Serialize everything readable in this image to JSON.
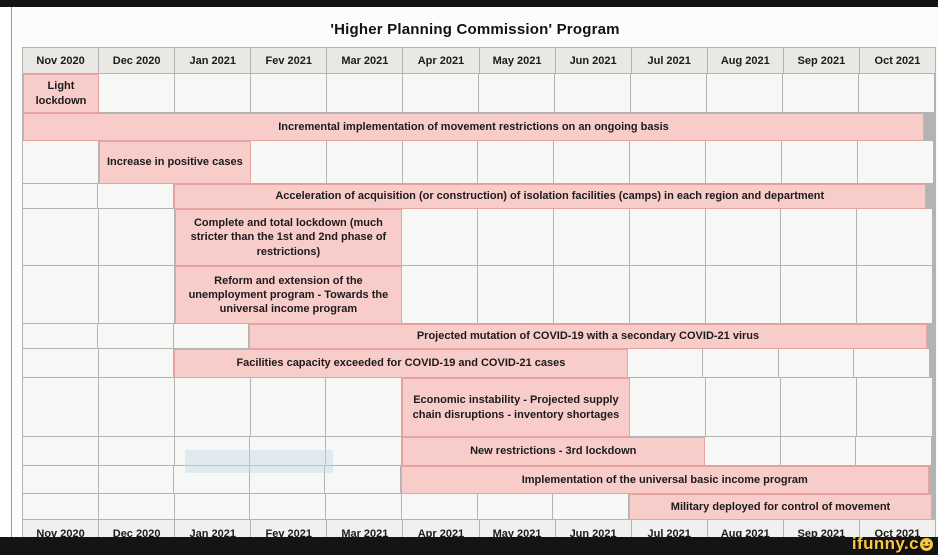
{
  "page": {
    "title": "'Higher Planning Commission' Program"
  },
  "watermark": {
    "label": "ifunny.c",
    "full": "ifunny.co"
  },
  "chart_data": {
    "type": "bar",
    "subtype": "gantt-timeline-table",
    "title": "'Higher Planning Commission' Program",
    "grid": true,
    "months": [
      "Nov 2020",
      "Dec 2020",
      "Jan 2021",
      "Fev 2021",
      "Mar 2021",
      "Apr 2021",
      "May 2021",
      "Jun 2021",
      "Jul 2021",
      "Aug 2021",
      "Sep 2021",
      "Oct 2021"
    ],
    "months_repeated_at_bottom": true,
    "colors": {
      "bar_fill": "#f8ccc9",
      "bar_border": "#e6a3a0",
      "header_bg": "#e9e8e5",
      "grid_line": "#b3b3b3",
      "watermark_yellow": "#f9c73b"
    },
    "rows": [
      {
        "label": "Light lockdown",
        "start": 1,
        "end": 1,
        "start_month": "Nov 2020",
        "end_month": "Nov 2020"
      },
      {
        "label": "Incremental implementation of movement restrictions on an ongoing basis",
        "start": 1,
        "end": 12,
        "start_month": "Nov 2020",
        "end_month": "Oct 2021"
      },
      {
        "label": "Increase in positive cases",
        "start": 2,
        "end": 3,
        "start_month": "Dec 2020",
        "end_month": "Jan 2021"
      },
      {
        "label": "Acceleration of acquisition (or construction) of isolation facilities (camps) in each region and department",
        "start": 3,
        "end": 12,
        "start_month": "Jan 2021",
        "end_month": "Oct 2021"
      },
      {
        "label": "Complete and total lockdown (much stricter than the 1st and 2nd phase of restrictions)",
        "start": 3,
        "end": 5,
        "start_month": "Jan 2021",
        "end_month": "Mar 2021"
      },
      {
        "label": "Reform and extension of the unemployment program - Towards the universal income program",
        "start": 3,
        "end": 5,
        "start_month": "Jan 2021",
        "end_month": "Mar 2021"
      },
      {
        "label": "Projected mutation of COVID-19 with a secondary COVID-21 virus",
        "start": 4,
        "end": 12,
        "start_month": "Fev 2021",
        "end_month": "Oct 2021"
      },
      {
        "label": "Facilities capacity exceeded for COVID-19 and COVID-21 cases",
        "start": 3,
        "end": 8,
        "start_month": "Jan 2021",
        "end_month": "Jun 2021"
      },
      {
        "label": "Economic instability - Projected supply chain disruptions - inventory shortages",
        "start": 6,
        "end": 8,
        "start_month": "Apr 2021",
        "end_month": "Jun 2021"
      },
      {
        "label": "New restrictions - 3rd lockdown",
        "start": 6,
        "end": 9,
        "start_month": "Apr 2021",
        "end_month": "Jul 2021"
      },
      {
        "label": "Implementation of the universal basic income program",
        "start": 6,
        "end": 12,
        "start_month": "Apr 2021",
        "end_month": "Oct 2021"
      },
      {
        "label": "Military deployed for control of movement",
        "start": 9,
        "end": 12,
        "start_month": "Jul 2021",
        "end_month": "Oct 2021"
      }
    ]
  }
}
